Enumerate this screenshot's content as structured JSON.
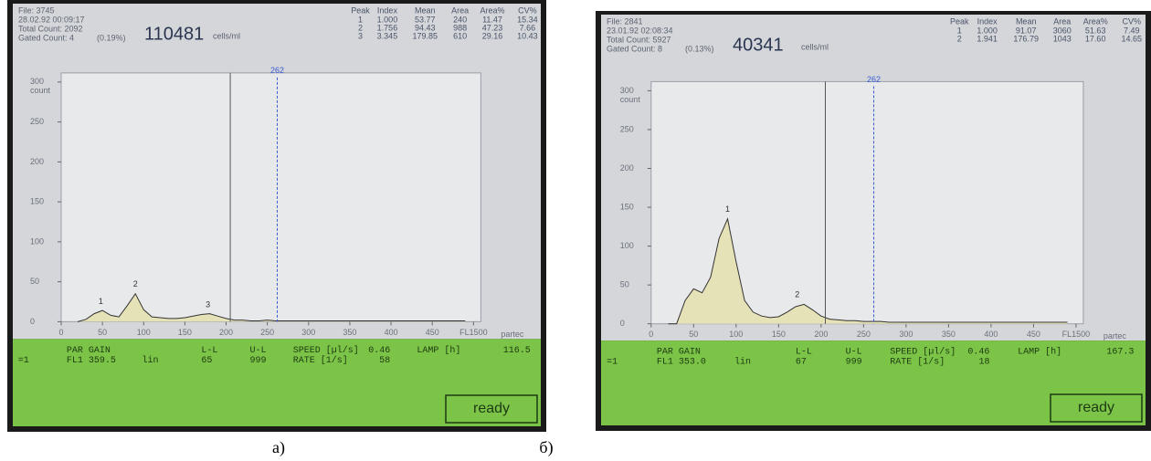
{
  "chart_data": [
    {
      "type": "area",
      "caption": "а)",
      "file": "File: 3745",
      "date": "28.02.92 00:09:17",
      "total_count": "Total Count: 2092",
      "gated_count": "Gated Count: 4",
      "gated_percent": "(0.19%)",
      "concentration": "110481",
      "unit": "cells/ml",
      "peak_table": {
        "columns": [
          "Peak",
          "Index",
          "Mean",
          "Area",
          "Area%",
          "CV%"
        ],
        "rows": [
          [
            "1",
            "1.000",
            "53.77",
            "240",
            "11.47",
            "15.34"
          ],
          [
            "2",
            "1.756",
            "94.43",
            "988",
            "47.23",
            "7.66"
          ],
          [
            "3",
            "3.345",
            "179.85",
            "610",
            "29.16",
            "10.43"
          ]
        ]
      },
      "y_label": "count",
      "brand": "partec",
      "x": [
        20,
        30,
        40,
        50,
        60,
        70,
        80,
        90,
        100,
        110,
        120,
        130,
        140,
        150,
        160,
        170,
        180,
        190,
        200,
        210,
        220,
        230,
        240,
        250,
        260,
        270,
        280,
        290,
        300,
        310,
        320,
        330,
        340,
        350,
        360,
        370,
        380,
        390,
        400,
        410,
        420,
        430,
        440,
        450,
        460,
        470,
        480,
        490
      ],
      "values": [
        0,
        3,
        10,
        14,
        8,
        6,
        20,
        35,
        15,
        6,
        5,
        4,
        4,
        5,
        7,
        9,
        10,
        7,
        4,
        2,
        2,
        1,
        1,
        2,
        1,
        1,
        1,
        1,
        1,
        1,
        1,
        1,
        1,
        1,
        1,
        1,
        1,
        1,
        1,
        1,
        1,
        1,
        1,
        1,
        1,
        1,
        1,
        1
      ],
      "color": "#e6e2b8",
      "xlim": [
        0,
        500
      ],
      "ylim": [
        0,
        300
      ],
      "xticks": [
        0,
        50,
        100,
        150,
        200,
        250,
        300,
        350,
        400,
        450,
        {
          "value": 500,
          "label": "FL1500"
        }
      ],
      "yticks": [
        0,
        50,
        100,
        150,
        200,
        250,
        300
      ],
      "gate": 205,
      "cursor": 262,
      "peak_labels": [
        {
          "label": "1",
          "x": 48,
          "y": 18
        },
        {
          "label": "2",
          "x": 90,
          "y": 40
        },
        {
          "label": "3",
          "x": 178,
          "y": 14
        }
      ],
      "status": [
        [
          "PAR GAIN",
          "L-L",
          "U-L",
          "SPEED [µl/s]",
          "0.46",
          "LAMP [h]",
          "116.5"
        ],
        [
          "=1",
          "FL1 359.5",
          "lin",
          "65",
          "999",
          "RATE [1/s]",
          "58"
        ]
      ],
      "button": "ready"
    },
    {
      "type": "area",
      "caption": "б)",
      "file": "File: 2841",
      "date": "23.01.92 02:08:34",
      "total_count": "Total Count: 5927",
      "gated_count": "Gated Count: 8",
      "gated_percent": "(0.13%)",
      "concentration": "40341",
      "unit": "cells/ml",
      "peak_table": {
        "columns": [
          "Peak",
          "Index",
          "Mean",
          "Area",
          "Area%",
          "CV%"
        ],
        "rows": [
          [
            "1",
            "1.000",
            "91.07",
            "3060",
            "51.63",
            "7.49"
          ],
          [
            "2",
            "1.941",
            "176.79",
            "1043",
            "17.60",
            "14.65"
          ]
        ]
      },
      "y_label": "count",
      "brand": "partec",
      "x": [
        20,
        30,
        40,
        50,
        60,
        70,
        80,
        90,
        100,
        110,
        120,
        130,
        140,
        150,
        160,
        170,
        180,
        190,
        200,
        210,
        220,
        230,
        240,
        250,
        260,
        270,
        280,
        290,
        300,
        310,
        320,
        330,
        340,
        350,
        360,
        370,
        380,
        390,
        400,
        410,
        420,
        430,
        440,
        450,
        460,
        470,
        480,
        490
      ],
      "values": [
        0,
        0,
        30,
        45,
        40,
        60,
        110,
        135,
        80,
        30,
        15,
        10,
        8,
        9,
        15,
        22,
        25,
        18,
        10,
        6,
        5,
        4,
        4,
        3,
        3,
        3,
        2,
        2,
        2,
        2,
        2,
        2,
        2,
        2,
        2,
        2,
        2,
        2,
        2,
        2,
        2,
        2,
        2,
        2,
        2,
        2,
        2,
        2
      ],
      "color": "#e6e2b8",
      "xlim": [
        0,
        500
      ],
      "ylim": [
        0,
        300
      ],
      "xticks": [
        0,
        50,
        100,
        150,
        200,
        250,
        300,
        350,
        400,
        450,
        {
          "value": 500,
          "label": "FL1500"
        }
      ],
      "yticks": [
        0,
        50,
        100,
        150,
        200,
        250,
        300
      ],
      "gate": 205,
      "cursor": 262,
      "peak_labels": [
        {
          "label": "1",
          "x": 90,
          "y": 140
        },
        {
          "label": "2",
          "x": 172,
          "y": 30
        }
      ],
      "status": [
        [
          "PAR GAIN",
          "L-L",
          "U-L",
          "SPEED [µl/s]",
          "0.46",
          "LAMP [h]",
          "167.3"
        ],
        [
          "=1",
          "FL1 353.0",
          "lin",
          "67",
          "999",
          "RATE [1/s]",
          "18"
        ]
      ],
      "button": "ready"
    }
  ]
}
